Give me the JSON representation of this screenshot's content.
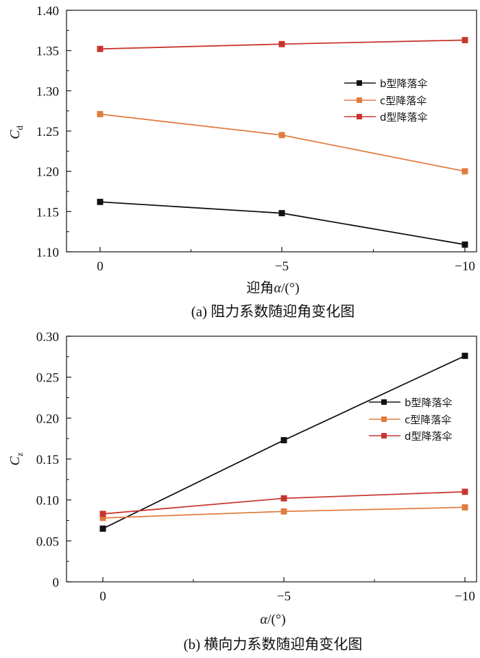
{
  "colors": {
    "b": "#111111",
    "c": "#e07c3e",
    "d": "#c8352e"
  },
  "chart_data": [
    {
      "type": "line",
      "caption": "(a) 阻力系数随迎角变化图",
      "ylabel_main": "C",
      "ylabel_sub": "d",
      "xlabel_prefix": "迎角",
      "xlabel_var": "α",
      "xlabel_suffix": "/(°)",
      "x": [
        0,
        -5,
        -10
      ],
      "xticks": [
        "0",
        "−5",
        "−10"
      ],
      "ylim": [
        1.1,
        1.4
      ],
      "yticks": [
        "1.10",
        "1.15",
        "1.20",
        "1.25",
        "1.30",
        "1.35",
        "1.40"
      ],
      "legend_position": "right-middle",
      "series": [
        {
          "name": "b型降落伞",
          "key": "b",
          "values": [
            1.162,
            1.148,
            1.109
          ]
        },
        {
          "name": "c型降落伞",
          "key": "c",
          "values": [
            1.271,
            1.245,
            1.2
          ]
        },
        {
          "name": "d型降落伞",
          "key": "d",
          "values": [
            1.352,
            1.358,
            1.363
          ]
        }
      ]
    },
    {
      "type": "line",
      "caption": "(b) 横向力系数随迎角变化图",
      "ylabel_main": "C",
      "ylabel_sub": "z",
      "xlabel_prefix": "",
      "xlabel_var": "α",
      "xlabel_suffix": "/(°)",
      "x": [
        0,
        -5,
        -10
      ],
      "xticks": [
        "0",
        "−5",
        "−10"
      ],
      "ylim": [
        0,
        0.3
      ],
      "yticks": [
        "0",
        "0.05",
        "0.10",
        "0.15",
        "0.20",
        "0.25",
        "0.30"
      ],
      "legend_position": "right-middle",
      "series": [
        {
          "name": "b型降落伞",
          "key": "b",
          "values": [
            0.065,
            0.173,
            0.276
          ]
        },
        {
          "name": "c型降落伞",
          "key": "c",
          "values": [
            0.078,
            0.086,
            0.091
          ]
        },
        {
          "name": "d型降落伞",
          "key": "d",
          "values": [
            0.083,
            0.102,
            0.11
          ]
        }
      ]
    }
  ]
}
